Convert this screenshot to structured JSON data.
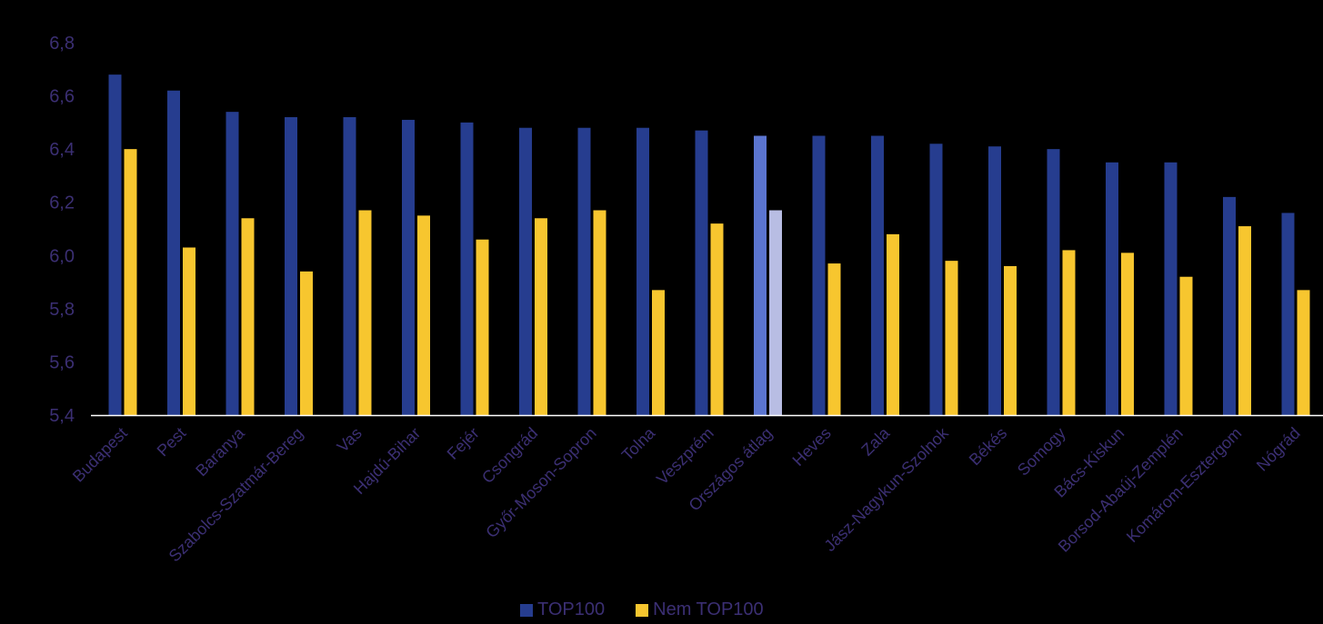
{
  "chart_data": {
    "type": "bar",
    "title": "",
    "xlabel": "",
    "ylabel": "",
    "ylim": [
      5.4,
      6.8
    ],
    "yticks": [
      "5,4",
      "5,6",
      "5,8",
      "6,0",
      "6,2",
      "6,4",
      "6,6",
      "6,8"
    ],
    "categories": [
      "Budapest",
      "Pest",
      "Baranya",
      "Szabolcs-Szatmár-Bereg",
      "Vas",
      "Hajdú-Bihar",
      "Fejér",
      "Csongrád",
      "Győr-Moson-Sopron",
      "Tolna",
      "Veszprém",
      "Országos átlag",
      "Heves",
      "Zala",
      "Jász-Nagykun-Szolnok",
      "Békés",
      "Somogy",
      "Bács-Kiskun",
      "Borsod-Abaúj-Zemplén",
      "Komárom-Esztergom",
      "Nógrád"
    ],
    "highlight_category": "Országos átlag",
    "series": [
      {
        "name": "TOP100",
        "color": "#263d8f",
        "highlight_color": "#5b75d0",
        "values": [
          6.68,
          6.62,
          6.54,
          6.52,
          6.52,
          6.51,
          6.5,
          6.48,
          6.48,
          6.48,
          6.47,
          6.45,
          6.45,
          6.45,
          6.42,
          6.41,
          6.4,
          6.35,
          6.35,
          6.22,
          6.16
        ]
      },
      {
        "name": "Nem TOP100",
        "color": "#f7c62f",
        "highlight_color": "#b8bde3",
        "values": [
          6.4,
          6.03,
          6.14,
          5.94,
          6.17,
          6.15,
          6.06,
          6.14,
          6.17,
          5.87,
          6.12,
          6.17,
          5.97,
          6.08,
          5.98,
          5.96,
          6.02,
          6.01,
          5.92,
          6.11,
          5.87
        ]
      }
    ],
    "legend_position": "bottom-center"
  }
}
